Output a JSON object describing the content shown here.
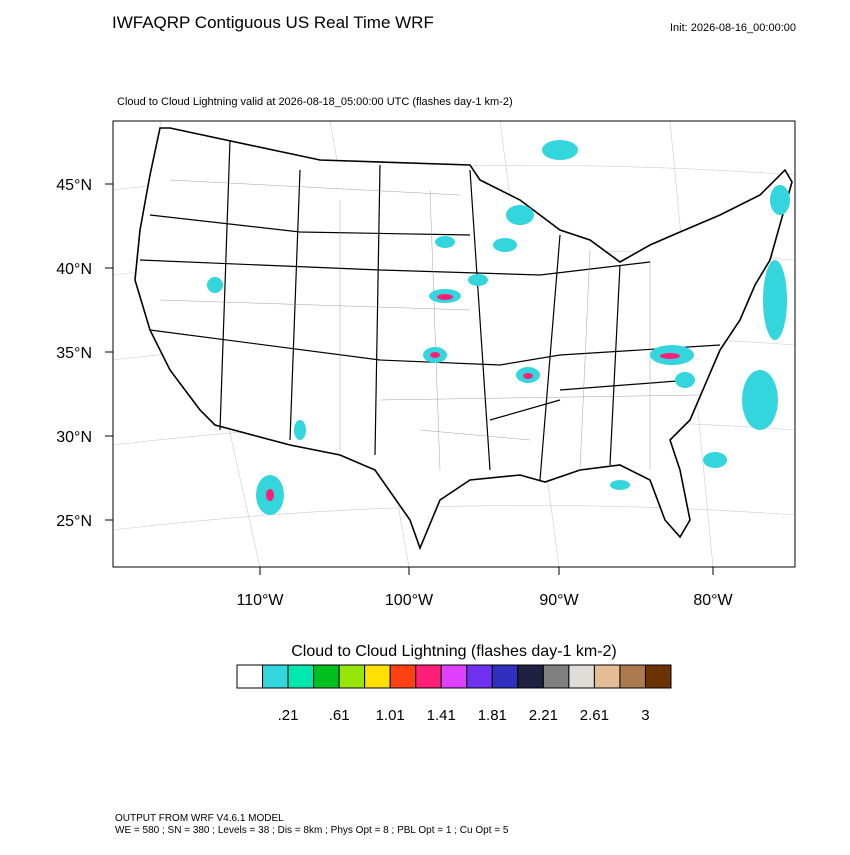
{
  "header": {
    "title": "IWFAQRP Contiguous US Real Time WRF",
    "init": "Init: 2026-08-16_00:00:00"
  },
  "map": {
    "subtitle": "Cloud to Cloud Lightning valid at 2026-08-18_05:00:00 UTC   (flashes day-1 km-2)",
    "lat_labels": [
      "45°N",
      "40°N",
      "35°N",
      "30°N",
      "25°N"
    ],
    "lon_labels": [
      "110°W",
      "100°W",
      "90°W",
      "80°W"
    ]
  },
  "colorbar": {
    "title": "Cloud to Cloud Lightning  (flashes day-1 km-2)",
    "colors": [
      "#ffffff",
      "#33d6dc",
      "#00e8b0",
      "#00c020",
      "#96e60a",
      "#ffe000",
      "#ff4010",
      "#ff1e78",
      "#e040ff",
      "#7030f0",
      "#3030c0",
      "#202040",
      "#808080",
      "#e0ddd8",
      "#e3bd95",
      "#ad7a4e",
      "#6b3300"
    ],
    "labels": [
      ".21",
      ".61",
      "1.01",
      "1.41",
      "1.81",
      "2.21",
      "2.61",
      "3"
    ]
  },
  "footer": {
    "line1": "OUTPUT FROM WRF V4.6.1 MODEL",
    "line2": "WE = 580 ; SN = 380 ; Levels = 38 ; Dis = 8km ; Phys Opt = 8 ; PBL Opt = 1 ; Cu Opt = 5"
  }
}
